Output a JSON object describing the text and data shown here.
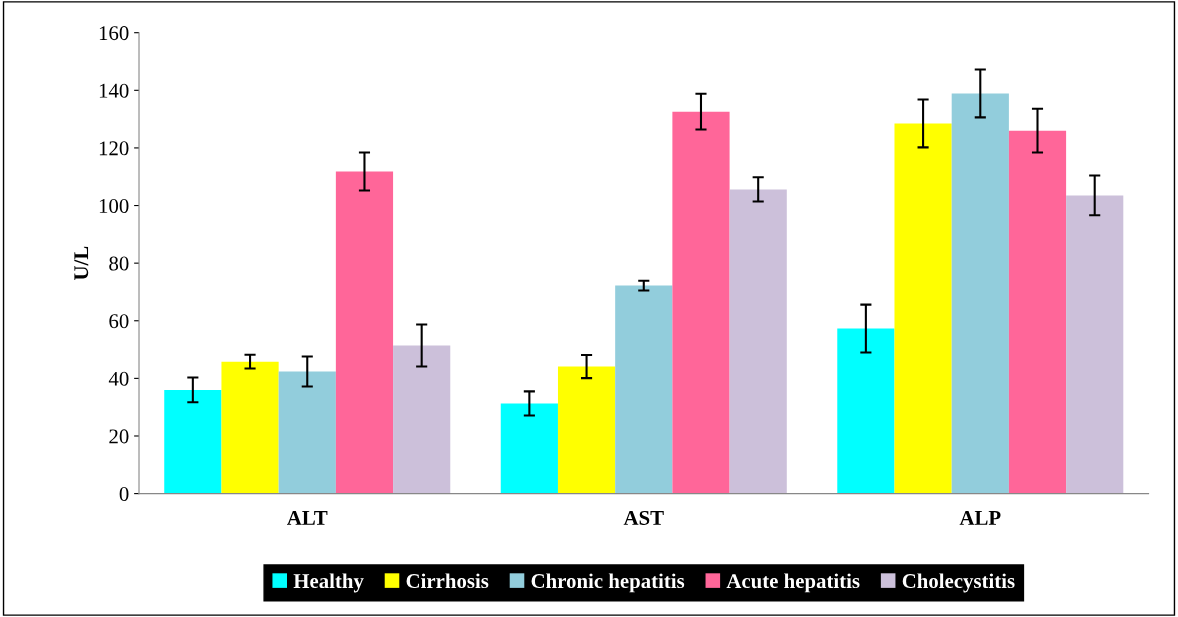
{
  "chart_data": {
    "type": "bar",
    "ylabel": "U/L",
    "categories": [
      "ALT",
      "AST",
      "ALP"
    ],
    "series": [
      {
        "name": "Healthy",
        "color": "#00ffff",
        "values": [
          36,
          31.3,
          57.3
        ],
        "errors": [
          4.3,
          4.2,
          8.3
        ]
      },
      {
        "name": "Cirrhosis",
        "color": "#ffff00",
        "values": [
          45.8,
          44.1,
          128.5
        ],
        "errors": [
          2.4,
          4,
          8.3
        ]
      },
      {
        "name": "Chronic hepatitis",
        "color": "#92cddc",
        "values": [
          42.4,
          72.2,
          138.9
        ],
        "errors": [
          5.2,
          1.7,
          8.3
        ]
      },
      {
        "name": "Acute hepatitis",
        "color": "#ff6699",
        "values": [
          111.8,
          132.6,
          126
        ],
        "errors": [
          6.6,
          6.2,
          7.6
        ]
      },
      {
        "name": "Cholecystitis",
        "color": "#ccc0da",
        "values": [
          51.4,
          105.6,
          103.5
        ],
        "errors": [
          7.3,
          4.2,
          6.9
        ]
      }
    ],
    "ylim": [
      0,
      160
    ],
    "yticks": [
      0,
      20,
      40,
      60,
      80,
      100,
      120,
      140,
      160
    ],
    "grid": false,
    "legend": "bottom"
  }
}
